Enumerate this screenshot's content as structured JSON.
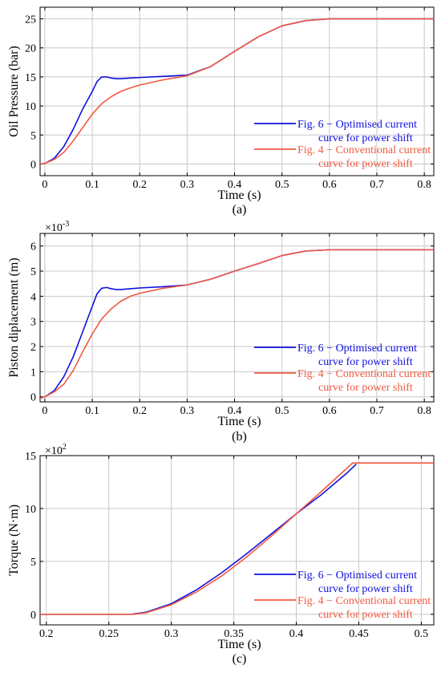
{
  "chart_data": [
    {
      "panel_label": "(a)",
      "type": "line",
      "xlabel": "Time (s)",
      "ylabel": "Oil Pressure (bar)",
      "xlim": [
        -0.01,
        0.82
      ],
      "ylim": [
        -2,
        27
      ],
      "xticks": [
        0,
        0.1,
        0.2,
        0.3,
        0.4,
        0.5,
        0.6,
        0.7,
        0.8
      ],
      "xtick_labels": [
        "0",
        "0.1",
        "0.2",
        "0.3",
        "0.4",
        "0.5",
        "0.6",
        "0.7",
        "0.8"
      ],
      "yticks": [
        0,
        5,
        10,
        15,
        20,
        25
      ],
      "ytick_labels": [
        "0",
        "5",
        "10",
        "15",
        "20",
        "25"
      ],
      "grid": true,
      "legend_position": "bottom-right",
      "series": [
        {
          "name": "Fig. 6 − Optimised current curve for power shift",
          "legend_lines": [
            "Fig. 6 − Optimised current",
            "curve for power shift"
          ],
          "color": "#1010e0",
          "x": [
            -0.01,
            0,
            0.02,
            0.04,
            0.06,
            0.08,
            0.1,
            0.11,
            0.12,
            0.13,
            0.14,
            0.15,
            0.16,
            0.18,
            0.2,
            0.25,
            0.3,
            0.35,
            0.4,
            0.45,
            0.5,
            0.55,
            0.6,
            0.7,
            0.82
          ],
          "y": [
            0,
            0.1,
            1.0,
            3.0,
            6.0,
            9.5,
            12.5,
            14.2,
            15.0,
            15.0,
            14.8,
            14.7,
            14.7,
            14.8,
            14.9,
            15.1,
            15.3,
            16.8,
            19.4,
            21.9,
            23.8,
            24.7,
            25.0,
            25.0,
            25.0
          ]
        },
        {
          "name": "Fig. 4 − Conventional current curve for power shift",
          "legend_lines": [
            "Fig. 4 − Conventional current",
            "curve for power shift"
          ],
          "color": "#f05a40",
          "x": [
            -0.01,
            0,
            0.02,
            0.04,
            0.06,
            0.08,
            0.1,
            0.12,
            0.14,
            0.16,
            0.18,
            0.2,
            0.25,
            0.3,
            0.35,
            0.4,
            0.45,
            0.5,
            0.55,
            0.6,
            0.7,
            0.82
          ],
          "y": [
            0,
            0.1,
            0.8,
            2.0,
            4.0,
            6.3,
            8.6,
            10.4,
            11.6,
            12.5,
            13.1,
            13.6,
            14.5,
            15.2,
            16.8,
            19.4,
            21.9,
            23.8,
            24.7,
            25.0,
            25.0,
            25.0
          ]
        }
      ]
    },
    {
      "panel_label": "(b)",
      "type": "line",
      "xlabel": "Time (s)",
      "ylabel": "Piston diplacement (m)",
      "multiplier": {
        "base": "×10",
        "exp": "-3"
      },
      "xlim": [
        -0.01,
        0.82
      ],
      "ylim": [
        -0.2,
        6.5
      ],
      "xticks": [
        0,
        0.1,
        0.2,
        0.3,
        0.4,
        0.5,
        0.6,
        0.7,
        0.8
      ],
      "xtick_labels": [
        "0",
        "0.1",
        "0.2",
        "0.3",
        "0.4",
        "0.5",
        "0.6",
        "0.7",
        "0.8"
      ],
      "yticks": [
        0,
        1,
        2,
        3,
        4,
        5,
        6
      ],
      "ytick_labels": [
        "0",
        "1",
        "2",
        "3",
        "4",
        "5",
        "6"
      ],
      "grid": true,
      "legend_position": "bottom-right",
      "series": [
        {
          "name": "Fig. 6 − Optimised current curve for power shift",
          "legend_lines": [
            "Fig. 6 − Optimised current",
            "curve for power shift"
          ],
          "color": "#1010e0",
          "x": [
            -0.01,
            0,
            0.02,
            0.04,
            0.06,
            0.08,
            0.1,
            0.11,
            0.12,
            0.13,
            0.14,
            0.15,
            0.16,
            0.18,
            0.2,
            0.25,
            0.3,
            0.35,
            0.4,
            0.45,
            0.5,
            0.55,
            0.6,
            0.7,
            0.82
          ],
          "y": [
            -0.05,
            0.0,
            0.25,
            0.8,
            1.6,
            2.6,
            3.6,
            4.1,
            4.32,
            4.35,
            4.3,
            4.27,
            4.27,
            4.3,
            4.33,
            4.38,
            4.45,
            4.68,
            5.0,
            5.3,
            5.62,
            5.8,
            5.85,
            5.85,
            5.85
          ]
        },
        {
          "name": "Fig. 4 − Conventional current curve for power shift",
          "legend_lines": [
            "Fig. 4 − Conventional current",
            "curve for power shift"
          ],
          "color": "#f05a40",
          "x": [
            -0.01,
            0,
            0.02,
            0.04,
            0.06,
            0.08,
            0.1,
            0.12,
            0.14,
            0.16,
            0.18,
            0.2,
            0.25,
            0.3,
            0.35,
            0.4,
            0.45,
            0.5,
            0.55,
            0.6,
            0.7,
            0.82
          ],
          "y": [
            -0.05,
            0.0,
            0.2,
            0.5,
            1.05,
            1.8,
            2.5,
            3.1,
            3.5,
            3.8,
            4.0,
            4.12,
            4.32,
            4.45,
            4.68,
            5.0,
            5.3,
            5.62,
            5.8,
            5.85,
            5.85,
            5.85
          ]
        }
      ]
    },
    {
      "panel_label": "(c)",
      "type": "line",
      "xlabel": "Time (s)",
      "ylabel": "Torque (N·m)",
      "multiplier": {
        "base": "×10",
        "exp": "2"
      },
      "xlim": [
        0.195,
        0.51
      ],
      "ylim": [
        -1.0,
        15.0
      ],
      "xticks": [
        0.2,
        0.25,
        0.3,
        0.35,
        0.4,
        0.45,
        0.5
      ],
      "xtick_labels": [
        "0.2",
        "0.25",
        "0.3",
        "0.35",
        "0.4",
        "0.45",
        "0.5"
      ],
      "yticks": [
        0,
        5,
        10,
        15
      ],
      "ytick_labels": [
        "0",
        "5",
        "10",
        "15"
      ],
      "grid": true,
      "legend_position": "bottom-right",
      "series": [
        {
          "name": "Fig. 6 − Optimised current curve for power shift",
          "legend_lines": [
            "Fig. 6 − Optimised current",
            "curve for power shift"
          ],
          "color": "#1010e0",
          "x": [
            0.195,
            0.25,
            0.268,
            0.28,
            0.3,
            0.32,
            0.34,
            0.36,
            0.38,
            0.4,
            0.42,
            0.44,
            0.448
          ],
          "y": [
            0,
            0,
            0,
            0.2,
            1.0,
            2.3,
            3.9,
            5.7,
            7.6,
            9.5,
            11.3,
            13.3,
            14.2
          ]
        },
        {
          "name": "Fig. 4 − Conventional current curve for power shift",
          "legend_lines": [
            "Fig. 4 − Conventional current",
            "curve for power shift"
          ],
          "color": "#f05a40",
          "x": [
            0.195,
            0.25,
            0.27,
            0.28,
            0.3,
            0.32,
            0.34,
            0.36,
            0.38,
            0.4,
            0.42,
            0.445,
            0.51
          ],
          "y": [
            0,
            0,
            0,
            0.15,
            0.9,
            2.1,
            3.6,
            5.4,
            7.4,
            9.5,
            11.6,
            14.3,
            14.3
          ]
        }
      ]
    }
  ]
}
